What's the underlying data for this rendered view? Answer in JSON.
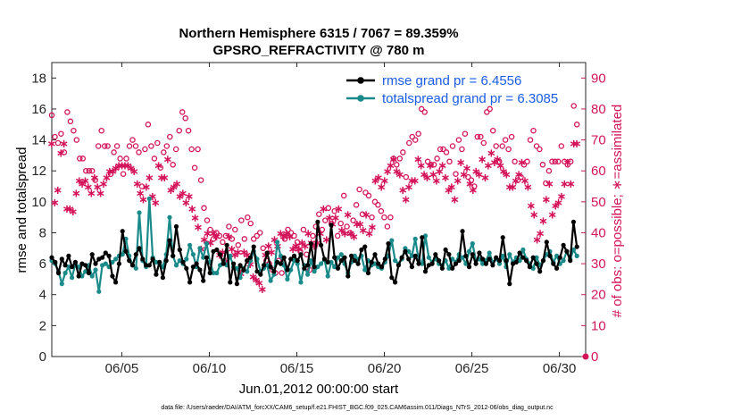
{
  "chart_data": {
    "type": "line",
    "title": "Northern Hemisphere 6315 / 7067 = 89.359%",
    "subtitle": "GPSRO_REFRACTIVITY @ 780 m",
    "xlabel": "Jun.01,2012 00:00:00 start",
    "ylabel_left": "rmse and totalspread",
    "ylabel_right": "# of obs: o=possible; ∗=assimilated",
    "xlim": [
      1,
      31.5
    ],
    "ylim_left": [
      0,
      19
    ],
    "ylim_right": [
      0,
      95
    ],
    "x_ticks": [
      5,
      10,
      15,
      20,
      25,
      30
    ],
    "x_tick_labels": [
      "06/05",
      "06/10",
      "06/15",
      "06/20",
      "06/25",
      "06/30"
    ],
    "y_ticks_left": [
      0,
      2,
      4,
      6,
      8,
      10,
      12,
      14,
      16,
      18
    ],
    "y_ticks_right": [
      0,
      10,
      20,
      30,
      40,
      50,
      60,
      70,
      80,
      90
    ],
    "legend": [
      {
        "label": "rmse grand pr = 6.4556",
        "color": "#000000"
      },
      {
        "label": "totalspread grand pr = 6.3085",
        "color": "#1a8a8a"
      }
    ],
    "colors": {
      "rmse": "#000000",
      "spread": "#1a8a8a",
      "obs": "#d4145a",
      "legend_text": "#1a5ce6"
    },
    "footnote": "data file: /Users/raeder/DAI/ATM_forcXX/CAM6_setup/f.e21.FHIST_BGC.f09_025.CAM6assim.011/Diags_NTrS_2012-06/obs_diag_output.nc",
    "series": [
      {
        "name": "rmse",
        "axis": "left",
        "values": [
          6.4,
          6.1,
          5.4,
          6.3,
          5.9,
          6.5,
          5.8,
          6.1,
          5.2,
          6.0,
          5.9,
          5.4,
          6.6,
          6.0,
          6.3,
          6.4,
          6.7,
          6.5,
          5.2,
          4.8,
          6.0,
          8.1,
          6.8,
          6.2,
          5.9,
          6.6,
          7.0,
          6.3,
          5.9,
          5.9,
          6.3,
          5.3,
          6.1,
          5.1,
          6.2,
          7.5,
          6.5,
          8.4,
          6.9,
          6.1,
          5.7,
          4.8,
          5.8,
          6.0,
          5.6,
          4.9,
          6.4,
          5.4,
          6.8,
          6.9,
          6.6,
          6.0,
          7.2,
          4.8,
          6.0,
          4.7,
          5.9,
          5.6,
          6.2,
          6.4,
          7.1,
          5.5,
          5.3,
          5.9,
          6.7,
          5.8,
          5.5,
          6.1,
          6.0,
          6.4,
          5.6,
          6.3,
          6.5,
          6.2,
          6.6,
          5.7,
          5.9,
          7.3,
          5.8,
          8.7,
          7.2,
          6.3,
          6.1,
          8.5,
          6.4,
          5.7,
          6.2,
          6.4,
          5.2,
          6.5,
          6.2,
          6.0,
          6.9,
          7.1,
          5.4,
          6.1,
          6.6,
          6.0,
          5.8,
          6.3,
          7.3,
          5.1,
          4.8,
          5.9,
          6.4,
          6.8,
          6.3,
          5.8,
          6.5,
          6.0,
          7.7,
          5.5,
          5.9,
          6.0,
          6.6,
          6.2,
          5.7,
          6.9,
          6.6,
          5.7,
          6.0,
          6.2,
          8.1,
          6.5,
          5.8,
          6.6,
          6.0,
          6.7,
          6.3,
          6.0,
          6.3,
          5.9,
          6.4,
          6.2,
          7.7,
          6.2,
          4.7,
          6.0,
          6.1,
          6.7,
          6.4,
          6.2,
          5.8,
          6.4,
          6.0,
          5.5,
          6.2,
          7.4,
          6.5,
          6.0,
          5.7,
          6.4,
          7.2,
          6.8,
          6.2,
          8.7,
          7.1
        ]
      },
      {
        "name": "totalspread",
        "axis": "left",
        "values": [
          6.2,
          6.0,
          5.5,
          4.7,
          5.4,
          5.8,
          5.1,
          6.0,
          5.8,
          5.2,
          5.5,
          5.9,
          5.2,
          5.6,
          4.2,
          5.9,
          6.0,
          5.8,
          6.1,
          6.3,
          6.5,
          6.6,
          7.6,
          6.5,
          5.9,
          5.7,
          9.3,
          6.2,
          5.8,
          10.2,
          6.4,
          6.1,
          6.0,
          5.8,
          6.6,
          9.0,
          6.5,
          5.9,
          6.2,
          6.0,
          6.3,
          7.2,
          6.6,
          5.8,
          7.0,
          6.4,
          7.3,
          6.1,
          5.4,
          5.4,
          5.9,
          6.2,
          5.9,
          6.5,
          5.8,
          5.7,
          5.1,
          5.7,
          5.5,
          6.2,
          6.8,
          6.3,
          5.5,
          5.7,
          5.9,
          4.9,
          5.3,
          7.4,
          6.5,
          5.9,
          5.0,
          5.6,
          6.2,
          6.0,
          4.8,
          5.9,
          5.3,
          6.2,
          5.5,
          5.8,
          6.0,
          6.3,
          5.2,
          6.1,
          5.8,
          6.4,
          6.6,
          6.0,
          5.4,
          6.1,
          6.5,
          6.3,
          6.5,
          5.6,
          6.2,
          5.9,
          6.0,
          5.8,
          5.7,
          6.1,
          6.5,
          7.5,
          6.2,
          6.0,
          6.3,
          7.0,
          6.8,
          6.5,
          7.6,
          6.2,
          6.0,
          7.8,
          6.4,
          6.1,
          6.3,
          6.0,
          5.9,
          6.2,
          5.7,
          6.3,
          6.1,
          6.6,
          6.4,
          6.0,
          6.8,
          7.3,
          6.2,
          6.3,
          6.0,
          6.2,
          6.7,
          6.1,
          6.3,
          6.0,
          6.5,
          5.8,
          6.6,
          6.1,
          6.4,
          6.2,
          6.9,
          6.3,
          6.0,
          5.7,
          6.4,
          5.9,
          6.2,
          6.6,
          6.8,
          6.1,
          6.5,
          6.0,
          6.2,
          6.8,
          6.3,
          6.9,
          6.5
        ]
      },
      {
        "name": "possible",
        "axis": "right",
        "values": [
          78,
          71,
          69,
          72,
          66,
          79,
          76,
          73,
          70,
          64,
          64,
          60,
          60,
          60,
          57,
          68,
          73,
          68,
          68,
          59,
          66,
          68,
          64,
          59,
          64,
          68,
          70,
          68,
          66,
          55,
          67,
          75,
          68,
          64,
          69,
          61,
          66,
          68,
          71,
          62,
          67,
          73,
          79,
          77,
          73,
          67,
          61,
          67,
          57,
          48,
          44,
          41,
          38,
          40,
          39,
          37,
          39,
          42,
          38,
          41,
          36,
          44,
          38,
          45,
          43,
          38,
          39,
          40,
          35,
          31,
          30,
          28,
          27,
          31,
          27,
          38,
          41,
          40,
          39,
          37,
          34,
          41,
          33,
          28,
          39,
          42,
          46,
          41,
          44,
          48,
          43,
          47,
          39,
          43,
          52,
          42,
          40,
          44,
          49,
          54,
          46,
          53,
          52,
          45,
          50,
          49,
          47,
          45,
          42,
          45,
          64,
          62,
          64,
          66,
          58,
          69,
          71,
          70,
          72,
          80,
          79,
          63,
          62,
          62,
          64,
          67,
          67,
          66,
          63,
          68,
          59,
          70,
          67,
          72,
          58,
          57,
          55,
          71,
          71,
          69,
          79,
          80,
          73,
          68,
          63,
          68,
          70,
          67,
          71,
          63,
          57,
          58,
          62,
          63,
          70,
          73,
          68,
          67,
          62,
          56,
          60,
          63,
          63,
          63,
          68,
          63,
          62,
          63,
          81,
          75
        ]
      },
      {
        "name": "assimilated",
        "axis": "right",
        "values": [
          69,
          50,
          54,
          66,
          69,
          48,
          48,
          47,
          53,
          57,
          56,
          57,
          55,
          53,
          58,
          55,
          53,
          56,
          58,
          60,
          60,
          61,
          62,
          62,
          62,
          62,
          61,
          60,
          56,
          53,
          51,
          55,
          58,
          52,
          50,
          62,
          58,
          58,
          64,
          54,
          55,
          56,
          52,
          53,
          50,
          52,
          48,
          45,
          42,
          35,
          38,
          40,
          37,
          40,
          39,
          33,
          34,
          31,
          39,
          35,
          33,
          34,
          27,
          34,
          33,
          30,
          26,
          25,
          24,
          22,
          33,
          36,
          34,
          38,
          36,
          40,
          39,
          40,
          39,
          35,
          36,
          35,
          37,
          36,
          40,
          37,
          36,
          37,
          40,
          48,
          38,
          45,
          43,
          45,
          48,
          41,
          40,
          46,
          40,
          39,
          43,
          43,
          41,
          46,
          40,
          42,
          57,
          58,
          55,
          57,
          60,
          62,
          64,
          60,
          59,
          54,
          51,
          55,
          57,
          57,
          64,
          62,
          59,
          58,
          62,
          59,
          57,
          60,
          62,
          58,
          54,
          55,
          51,
          57,
          63,
          59,
          61,
          56,
          54,
          60,
          59,
          64,
          58,
          62,
          66,
          63,
          64,
          62,
          60,
          59,
          55,
          55,
          57,
          59,
          63,
          57,
          55,
          49,
          46,
          38,
          40,
          44,
          51,
          56,
          46,
          49,
          50,
          52,
          56,
          63,
          56,
          69,
          69
        ]
      }
    ]
  }
}
